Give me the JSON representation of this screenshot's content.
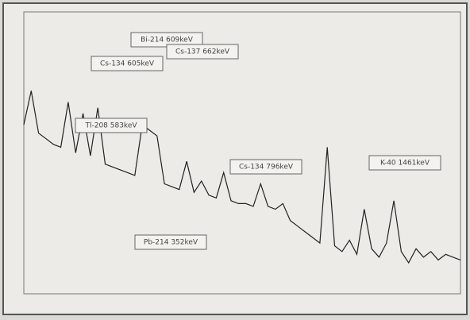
{
  "chart_data": {
    "type": "line",
    "x": [
      0,
      1,
      2,
      3,
      4,
      5,
      6,
      7,
      8,
      9,
      10,
      11,
      12,
      13,
      14,
      15,
      16,
      17,
      18,
      19,
      20,
      21,
      22,
      23,
      24,
      25,
      26,
      27,
      28,
      29,
      30,
      31,
      32,
      33,
      34,
      35,
      36,
      37,
      38,
      39,
      40,
      41,
      42,
      43,
      44,
      45,
      46,
      47,
      48,
      49,
      50,
      51,
      52,
      53,
      54,
      55,
      56,
      57,
      58,
      59
    ],
    "values": [
      60,
      72,
      57,
      55,
      53,
      52,
      68,
      50,
      64,
      49,
      66,
      46,
      45,
      44,
      43,
      42,
      60,
      58,
      56,
      39,
      38,
      37,
      47,
      36,
      40,
      35,
      34,
      43,
      33,
      32,
      32,
      31,
      39,
      31,
      30,
      32,
      26,
      24,
      22,
      20,
      18,
      52,
      17,
      15,
      19,
      14,
      30,
      16,
      13,
      18,
      33,
      15,
      11,
      16,
      13,
      15,
      12,
      14,
      13,
      12
    ],
    "color": "#222222",
    "xlim": [
      0,
      59
    ],
    "ylim": [
      0,
      100
    ],
    "annotations": [
      "Pb-214 352keV",
      "Tl-208 583keV",
      "Cs-134 605keV",
      "Bi-214 609keV",
      "Cs-137 662keV",
      "Cs-134 796keV",
      "K-40 1461keV"
    ]
  }
}
